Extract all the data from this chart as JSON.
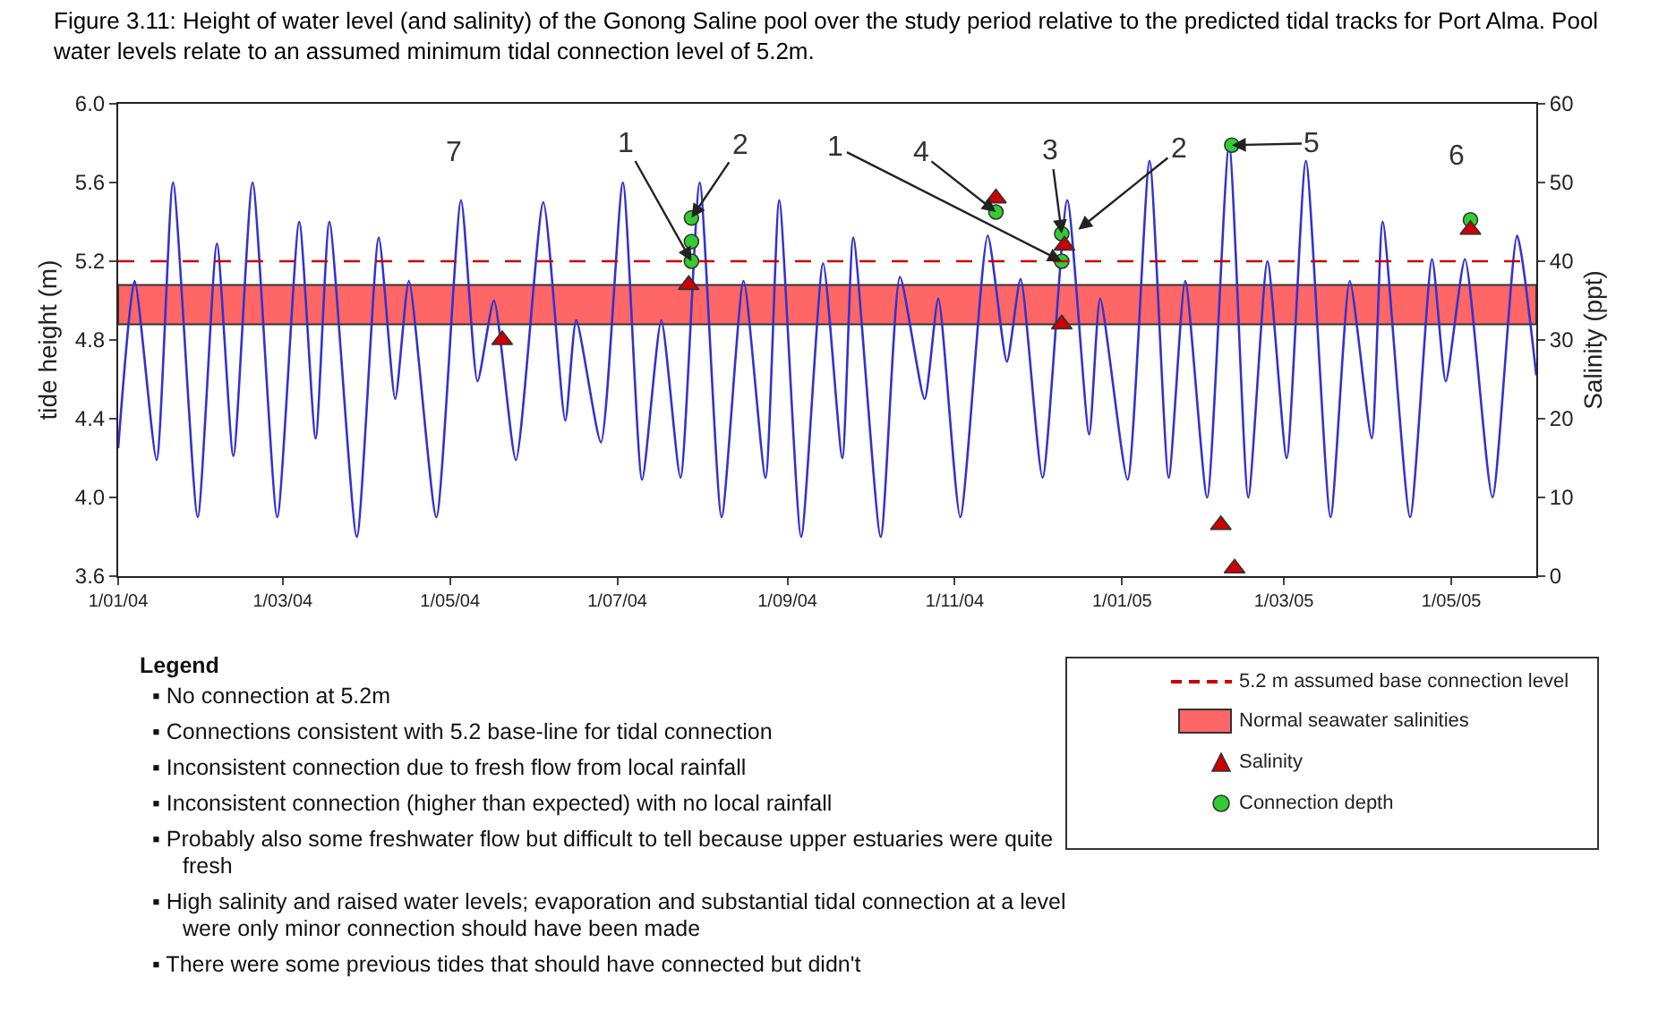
{
  "chart_data": {
    "type": "line",
    "title": "Figure 3.11: Height of water level (and salinity) of the Gonong Saline pool over the study period relative to the predicted tidal tracks for Port Alma. Pool water levels relate to an assumed minimum tidal connection level of 5.2m.",
    "ylabel": "tide height (m)",
    "y2label": "Salinity (ppt)",
    "xlim": [
      "2004-01-01",
      "2005-06-01"
    ],
    "xticks": [
      {
        "value": "2004-01-01",
        "label": "1/01/04"
      },
      {
        "value": "2004-03-01",
        "label": "1/03/04"
      },
      {
        "value": "2004-05-01",
        "label": "1/05/04"
      },
      {
        "value": "2004-07-01",
        "label": "1/07/04"
      },
      {
        "value": "2004-09-01",
        "label": "1/09/04"
      },
      {
        "value": "2004-11-01",
        "label": "1/11/04"
      },
      {
        "value": "2005-01-01",
        "label": "1/01/05"
      },
      {
        "value": "2005-03-01",
        "label": "1/03/05"
      },
      {
        "value": "2005-05-01",
        "label": "1/05/05"
      }
    ],
    "ylim": [
      3.6,
      6.0
    ],
    "yticks": [
      3.6,
      {
        "value": 4,
        "label": "4.0"
      },
      4.4,
      4.8,
      5.2,
      5.6,
      {
        "value": 6,
        "label": "6.0"
      }
    ],
    "y2lim": [
      0,
      60
    ],
    "y2ticks": [
      0,
      10,
      20,
      30,
      40,
      50,
      60
    ],
    "grid": false,
    "legend": "bottom right",
    "series": [
      {
        "color": "#3333cc",
        "marker": "none",
        "line_style": "solid",
        "x": [
          "2004-01-01",
          "2004-01-07",
          "2004-01-15",
          "2004-01-21",
          "2004-01-30",
          "2004-02-06",
          "2004-02-12",
          "2004-02-19",
          "2004-02-28",
          "2004-03-07",
          "2004-03-13",
          "2004-03-18",
          "2004-03-28",
          "2004-04-05",
          "2004-04-11",
          "2004-04-16",
          "2004-04-26",
          "2004-05-05",
          "2004-05-11",
          "2004-05-17",
          "2004-05-25",
          "2004-06-04",
          "2004-06-12",
          "2004-06-16",
          "2004-06-25",
          "2004-07-03",
          "2004-07-10",
          "2004-07-17",
          "2004-07-24",
          "2004-07-31",
          "2004-08-08",
          "2004-08-16",
          "2004-08-24",
          "2004-08-29",
          "2004-09-06",
          "2004-09-14",
          "2004-09-21",
          "2004-09-25",
          "2004-10-05",
          "2004-10-12",
          "2004-10-21",
          "2004-10-26",
          "2004-11-03",
          "2004-11-13",
          "2004-11-20",
          "2004-11-25",
          "2004-12-03",
          "2004-12-12",
          "2004-12-20",
          "2004-12-24",
          "2005-01-03",
          "2005-01-11",
          "2005-01-18",
          "2005-01-24",
          "2005-02-01",
          "2005-02-09",
          "2005-02-16",
          "2005-02-23",
          "2005-03-02",
          "2005-03-09",
          "2005-03-18",
          "2005-03-25",
          "2005-04-02",
          "2005-04-06",
          "2005-04-16",
          "2005-04-24",
          "2005-04-29",
          "2005-05-06",
          "2005-05-16",
          "2005-05-25",
          "2005-06-01"
        ],
        "values": [
          4.25,
          5.1,
          4.19,
          5.6,
          3.9,
          5.29,
          4.21,
          5.6,
          3.9,
          5.4,
          4.3,
          5.4,
          3.8,
          5.32,
          4.5,
          5.1,
          3.9,
          5.51,
          4.59,
          5.0,
          4.19,
          5.5,
          4.39,
          4.9,
          4.28,
          5.6,
          4.09,
          4.9,
          4.1,
          5.6,
          3.9,
          5.1,
          4.1,
          5.51,
          3.8,
          5.19,
          4.2,
          5.32,
          3.8,
          5.12,
          4.5,
          5.01,
          3.9,
          5.33,
          4.69,
          5.11,
          4.1,
          5.51,
          4.32,
          5.01,
          4.09,
          5.71,
          4.1,
          5.1,
          4.0,
          5.79,
          4.0,
          5.2,
          4.2,
          5.71,
          3.9,
          5.1,
          4.3,
          5.4,
          3.9,
          5.21,
          4.59,
          5.21,
          4.0,
          5.33,
          4.62
        ]
      },
      {
        "type": "scatter",
        "name": "Salinity",
        "axis": "y2",
        "color": "#cc0000",
        "marker": "triangle",
        "x": [
          "2004-05-20",
          "2004-07-27",
          "2004-11-16",
          "2004-12-10",
          "2004-12-11",
          "2005-02-06",
          "2005-02-11",
          "2005-05-08"
        ],
        "values": [
          30,
          37,
          48,
          32,
          42,
          6.5,
          1,
          44
        ]
      },
      {
        "type": "scatter",
        "name": "Connection depth",
        "color": "#33cc33",
        "marker": "circle",
        "x": [
          "2004-07-28",
          "2004-07-28",
          "2004-07-28",
          "2004-11-16",
          "2004-12-10",
          "2004-12-10",
          "2005-02-10",
          "2005-05-08"
        ],
        "values": [
          5.2,
          5.3,
          5.42,
          5.45,
          5.2,
          5.34,
          5.79,
          5.41
        ]
      }
    ],
    "ref_lines": [
      {
        "axis": "y",
        "value": 5.2,
        "label": "5.2 m assumed base connection level",
        "color": "#cc0000",
        "line_style": "dashed"
      }
    ],
    "bands": [
      {
        "axis": "y2",
        "from": 32,
        "to": 37,
        "label": "Normal seawater salinities",
        "color": "#ff6666"
      }
    ],
    "annotations": [
      "7",
      {
        "text": "1",
        "x": "2004-07-28",
        "y": 5.2
      },
      {
        "text": "2",
        "x": "2004-07-28",
        "y": 5.42
      },
      {
        "text": "1",
        "x": "2004-12-10",
        "y": 5.2
      },
      {
        "text": "4",
        "x": "2004-11-16",
        "y": 5.45
      },
      {
        "text": "3",
        "x": "2004-12-10",
        "y": 5.34
      },
      {
        "text": "2",
        "x": "2004-12-16",
        "y": 5.36
      },
      "6",
      {
        "text": "5",
        "x": "2005-02-10",
        "y": 5.79
      },
      "Legend",
      "▪ No connection at 5.2m",
      "▪ Connections consistent with 5.2 base-line for tidal connection",
      "▪ Inconsistent connection due to fresh flow from local rainfall",
      "▪ Inconsistent connection (higher than expected) with no local rainfall",
      "▪ Probably also some freshwater flow but difficult to tell because upper estuaries were quite fresh",
      "▪ High salinity and raised water levels; evaporation and substantial tidal connection at a level were only minor connection should have been made",
      "▪ There were some previous tides that should have connected but didn't"
    ]
  }
}
